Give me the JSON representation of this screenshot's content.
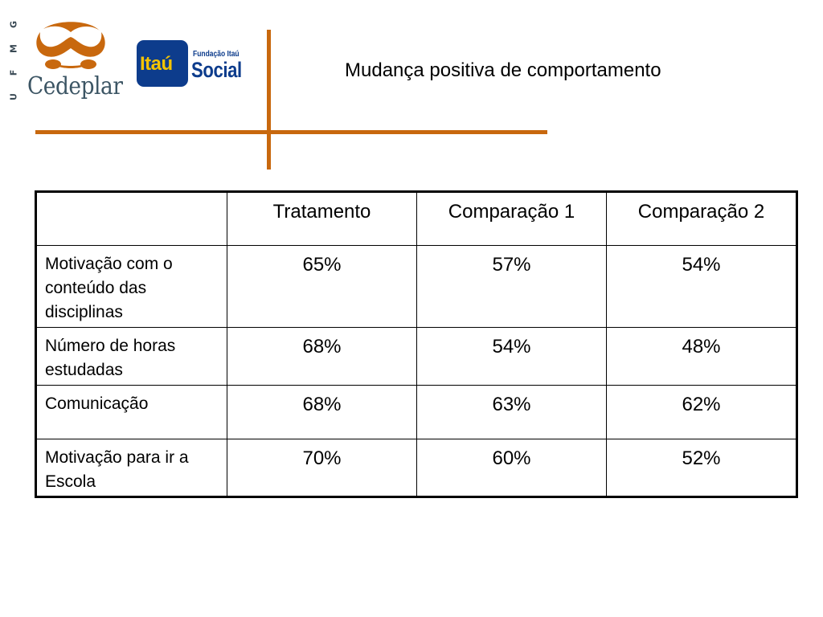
{
  "logos": {
    "ufmg_letters": [
      "G",
      "M",
      "F",
      "U"
    ],
    "cedeplar_text": "Cedeplar",
    "itau_text": "Itaú",
    "fundacao_text": "Fundação Itaú",
    "social_text": "Social",
    "accent_color": "#c8680e",
    "itau_blue": "#0d3c8c",
    "itau_yellow": "#f4c300"
  },
  "slide": {
    "title": "Mudança positiva de comportamento"
  },
  "table": {
    "headers": [
      "",
      "Tratamento",
      "Comparação 1",
      "Comparação 2"
    ],
    "rows": [
      {
        "label": "Motivação com o conteúdo das disciplinas",
        "values": [
          "65%",
          "57%",
          "54%"
        ]
      },
      {
        "label": "Número de horas estudadas",
        "values": [
          "68%",
          "54%",
          "48%"
        ]
      },
      {
        "label": "Comunicação",
        "values": [
          "68%",
          "63%",
          "62%"
        ]
      },
      {
        "label": "Motivação para ir a Escola",
        "values": [
          "70%",
          "60%",
          "52%"
        ]
      }
    ]
  }
}
